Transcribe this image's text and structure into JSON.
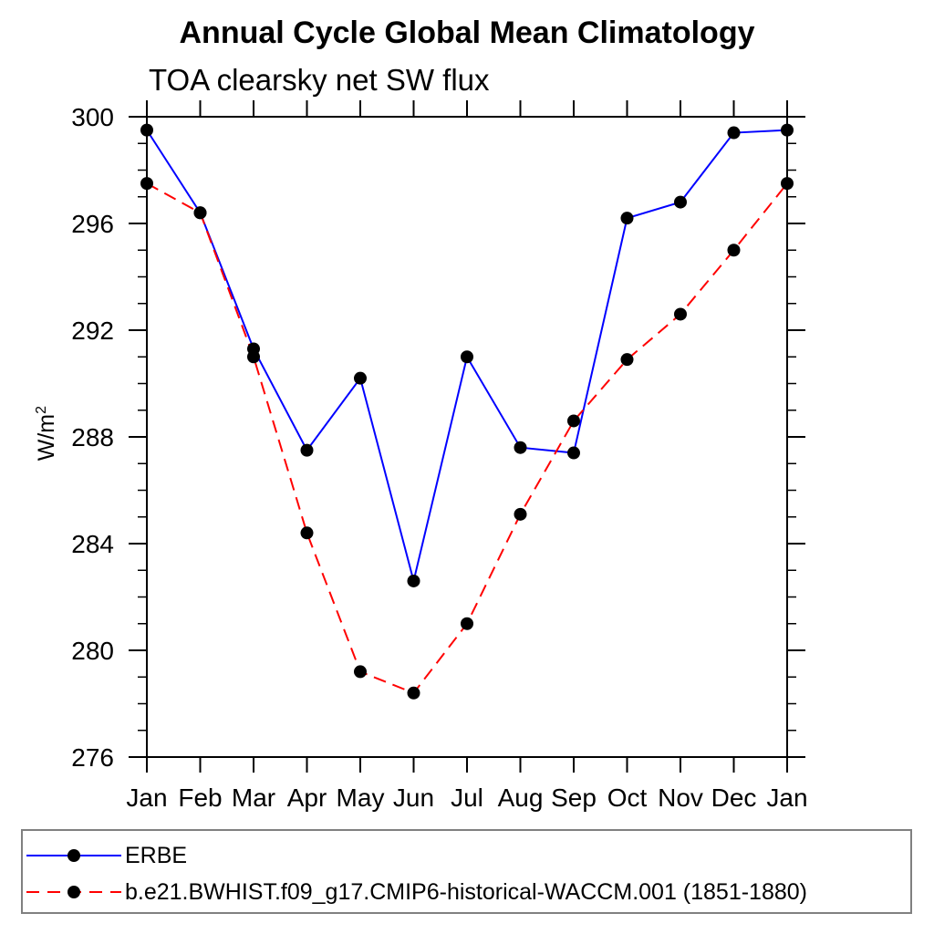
{
  "chart_data": {
    "type": "line",
    "title": "Annual Cycle Global Mean Climatology",
    "subtitle": "TOA clearsky net SW flux",
    "ylabel_base": "W/m",
    "ylabel_sup": "2",
    "categories": [
      "Jan",
      "Feb",
      "Mar",
      "Apr",
      "May",
      "Jun",
      "Jul",
      "Aug",
      "Sep",
      "Oct",
      "Nov",
      "Dec",
      "Jan"
    ],
    "series": [
      {
        "name": "ERBE",
        "color": "#0000ff",
        "style": "solid",
        "marker": "circle",
        "marker_color": "#000000",
        "values": [
          299.5,
          296.4,
          291.3,
          287.5,
          290.2,
          282.6,
          291.0,
          287.6,
          287.4,
          296.2,
          296.8,
          299.4,
          299.5
        ]
      },
      {
        "name": "b.e21.BWHIST.f09_g17.CMIP6-historical-WACCM.001 (1851-1880)",
        "color": "#ff0000",
        "style": "dashed",
        "marker": "circle",
        "marker_color": "#000000",
        "values": [
          297.5,
          296.4,
          291.0,
          284.4,
          279.2,
          278.4,
          281.0,
          285.1,
          288.6,
          290.9,
          292.6,
          295.0,
          297.5
        ]
      }
    ],
    "ylim": [
      276,
      300
    ],
    "yticks": [
      276,
      280,
      284,
      288,
      292,
      296,
      300
    ],
    "y_minor_step": 1,
    "grid": false,
    "legend_position": "bottom",
    "axis_color": "#000000",
    "legend_border_color": "#808080"
  }
}
